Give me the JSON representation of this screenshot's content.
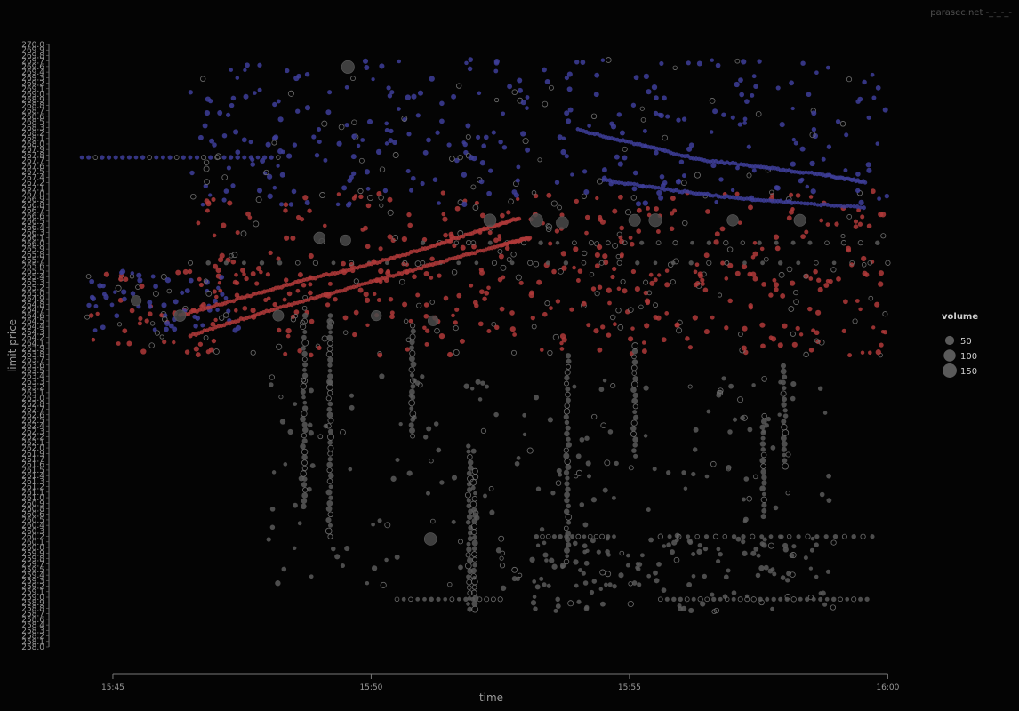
{
  "watermark": "parasec.net -_-_-_-",
  "chart_data": {
    "type": "scatter",
    "title": "",
    "xlabel": "time",
    "ylabel": "limit price",
    "x_ticks": [
      "15:45",
      "15:50",
      "15:55",
      "16:00"
    ],
    "x_tick_minutes": [
      0,
      5,
      10,
      15
    ],
    "xlim_minutes": [
      -0.55,
      15.2
    ],
    "y_tick_first": 270.0,
    "y_tick_last": 258.0,
    "y_tick_count": 110,
    "ylim": [
      270.0,
      258.0
    ],
    "legend": {
      "title": "volume",
      "placement": "right",
      "entries": [
        {
          "label": "50",
          "value": 50
        },
        {
          "label": "100",
          "value": 100
        },
        {
          "label": "150",
          "value": 150
        }
      ]
    },
    "colors": {
      "ask": "#b03a3a",
      "bid": "#3e3e9a",
      "trade": "#5a5a5a",
      "ring": "#6e6e6e",
      "background": "#040404"
    },
    "series": [
      {
        "role": "ask",
        "color": "#b03a3a",
        "trend": [
          [
            1.5,
            264.2
          ],
          [
            2.7,
            264.6
          ],
          [
            3.9,
            264.95
          ],
          [
            5.1,
            265.3
          ],
          [
            6.3,
            265.65
          ],
          [
            7.5,
            266.0
          ],
          [
            8.1,
            266.15
          ]
        ]
      },
      {
        "role": "ask",
        "color": "#b03a3a",
        "trend": [
          [
            1.3,
            264.6
          ],
          [
            2.5,
            264.95
          ],
          [
            3.7,
            265.3
          ],
          [
            4.9,
            265.6
          ],
          [
            6.1,
            265.95
          ],
          [
            7.1,
            266.3
          ],
          [
            7.9,
            266.55
          ]
        ]
      },
      {
        "role": "bid",
        "color": "#3e3e9a",
        "trend": [
          [
            9.0,
            268.3
          ],
          [
            10.2,
            268.0
          ],
          [
            11.4,
            267.7
          ],
          [
            12.6,
            267.55
          ],
          [
            13.8,
            267.4
          ],
          [
            14.6,
            267.25
          ]
        ]
      },
      {
        "role": "bid",
        "color": "#3e3e9a",
        "trend": [
          [
            9.5,
            267.3
          ],
          [
            10.8,
            267.1
          ],
          [
            12.0,
            266.95
          ],
          [
            13.2,
            266.85
          ],
          [
            14.6,
            266.75
          ]
        ]
      }
    ],
    "point_clouds": [
      {
        "role": "ask",
        "x_range": [
          -0.5,
          15.0
        ],
        "y_range": [
          263.8,
          265.5
        ],
        "count": 320
      },
      {
        "role": "ask",
        "x_range": [
          1.5,
          15.0
        ],
        "y_range": [
          265.2,
          267.1
        ],
        "count": 260
      },
      {
        "role": "trade",
        "x_range": [
          3.0,
          14.0
        ],
        "y_range": [
          259.2,
          263.4
        ],
        "count": 200
      },
      {
        "role": "bid",
        "x_range": [
          -0.5,
          2.5
        ],
        "y_range": [
          264.3,
          265.5
        ],
        "count": 70
      },
      {
        "role": "bid",
        "x_range": [
          1.5,
          15.0
        ],
        "y_range": [
          266.8,
          269.7
        ],
        "count": 360
      },
      {
        "role": "trade",
        "x_range": [
          7.5,
          14.0
        ],
        "y_range": [
          258.7,
          260.2
        ],
        "count": 120
      }
    ],
    "horizontal_levels": [
      {
        "role": "trade",
        "y": 260.2,
        "x_range": [
          8.2,
          9.7
        ],
        "count": 14
      },
      {
        "role": "trade",
        "y": 260.2,
        "x_range": [
          10.6,
          14.7
        ],
        "count": 24
      },
      {
        "role": "trade",
        "y": 258.95,
        "x_range": [
          5.5,
          7.5
        ],
        "count": 16
      },
      {
        "role": "trade",
        "y": 258.95,
        "x_range": [
          10.6,
          14.6
        ],
        "count": 32
      },
      {
        "role": "bid",
        "y": 267.75,
        "x_range": [
          -0.6,
          3.2
        ],
        "count": 30
      },
      {
        "role": "trade",
        "y": 265.65,
        "x_range": [
          1.5,
          15.0
        ],
        "count": 40
      },
      {
        "role": "trade",
        "y": 266.05,
        "x_range": [
          6.0,
          14.8
        ],
        "count": 28
      }
    ],
    "vertical_streaks": [
      {
        "role": "trade",
        "x": 3.7,
        "y_range": [
          260.8,
          264.6
        ]
      },
      {
        "role": "trade",
        "x": 4.2,
        "y_range": [
          260.2,
          264.6
        ]
      },
      {
        "role": "trade",
        "x": 5.8,
        "y_range": [
          262.2,
          264.4
        ]
      },
      {
        "role": "trade",
        "x": 6.9,
        "y_range": [
          258.75,
          262.0
        ]
      },
      {
        "role": "trade",
        "x": 7.0,
        "y_range": [
          258.75,
          261.5
        ]
      },
      {
        "role": "trade",
        "x": 8.8,
        "y_range": [
          259.7,
          263.8
        ]
      },
      {
        "role": "trade",
        "x": 10.1,
        "y_range": [
          261.8,
          264.0
        ]
      },
      {
        "role": "trade",
        "x": 12.6,
        "y_range": [
          260.6,
          262.6
        ]
      },
      {
        "role": "trade",
        "x": 13.0,
        "y_range": [
          261.6,
          263.6
        ]
      }
    ],
    "large_markers": [
      {
        "x": 1.3,
        "y": 264.6,
        "volume": 90
      },
      {
        "x": 3.2,
        "y": 264.6,
        "volume": 80
      },
      {
        "x": 5.1,
        "y": 264.6,
        "volume": 70
      },
      {
        "x": 6.2,
        "y": 264.5,
        "volume": 70
      },
      {
        "x": 4.0,
        "y": 266.15,
        "volume": 90
      },
      {
        "x": 7.3,
        "y": 266.5,
        "volume": 110
      },
      {
        "x": 8.2,
        "y": 266.5,
        "volume": 120
      },
      {
        "x": 8.7,
        "y": 266.45,
        "volume": 110
      },
      {
        "x": 10.1,
        "y": 266.5,
        "volume": 100
      },
      {
        "x": 10.5,
        "y": 266.5,
        "volume": 120
      },
      {
        "x": 12.0,
        "y": 266.5,
        "volume": 90
      },
      {
        "x": 13.3,
        "y": 266.5,
        "volume": 100
      },
      {
        "x": 4.55,
        "y": 269.55,
        "volume": 120
      },
      {
        "x": 6.15,
        "y": 260.15,
        "volume": 110
      },
      {
        "x": 4.5,
        "y": 266.1,
        "volume": 80
      },
      {
        "x": 0.45,
        "y": 264.9,
        "volume": 70
      }
    ]
  }
}
